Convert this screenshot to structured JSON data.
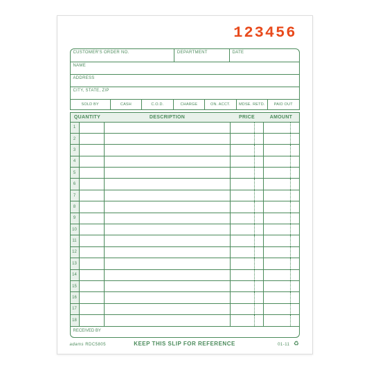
{
  "colors": {
    "form_ink": "#4a8a5a",
    "form_fill": "#e8f1ea",
    "order_no": "#e84a1c",
    "page_bg": "#ffffff"
  },
  "order_number": "123456",
  "header": {
    "row1": [
      {
        "label": "CUSTOMER'S ORDER NO.",
        "flex": 2
      },
      {
        "label": "DEPARTMENT",
        "flex": 1
      },
      {
        "label": "DATE",
        "flex": 1.3
      }
    ],
    "row2": [
      {
        "label": "NAME",
        "flex": 1
      }
    ],
    "row3": [
      {
        "label": "ADDRESS",
        "flex": 1
      }
    ],
    "row4": [
      {
        "label": "CITY, STATE, ZIP",
        "flex": 1
      }
    ]
  },
  "payment_methods": [
    "SOLD BY",
    "CASH",
    "C.O.D.",
    "CHARGE",
    "ON. ACCT.",
    "MDSE. RETD.",
    "PAID OUT"
  ],
  "columns": {
    "quantity": "QUANTITY",
    "description": "DESCRIPTION",
    "price": "PRICE",
    "amount": "AMOUNT"
  },
  "line_count": 18,
  "received_by": "RECEIVED BY",
  "footer": {
    "brand": "adams",
    "form_code": "RDC5805",
    "message": "KEEP THIS SLIP FOR REFERENCE",
    "date_code": "01-11"
  }
}
